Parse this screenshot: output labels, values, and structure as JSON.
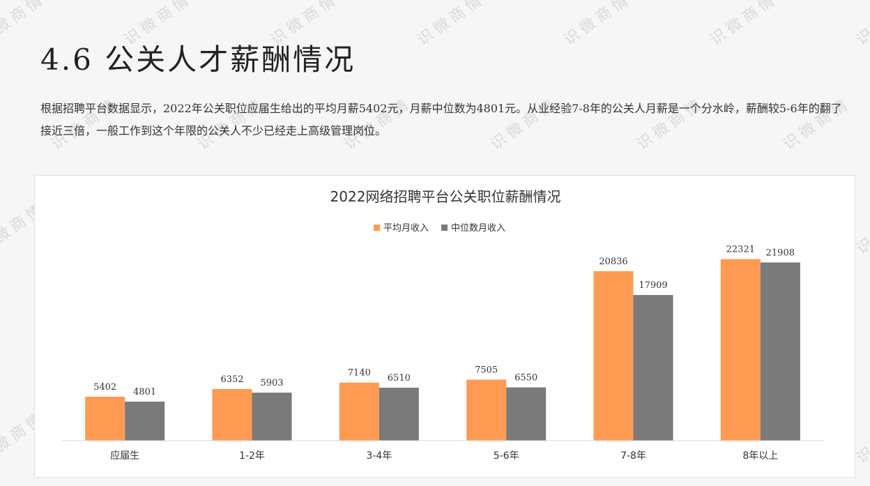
{
  "page": {
    "title": "4.6 公关人才薪酬情况",
    "intro": "根据招聘平台数据显示，2022年公关职位应届生给出的平均月薪5402元，月薪中位数为4801元。从业经验7-8年的公关人月薪是一个分水岭，薪酬较5-6年的翻了接近三倍，一般工作到这个年限的公关人不少已经走上高级管理岗位。",
    "watermark": "识微商情"
  },
  "colors": {
    "avg": "#FF9A52",
    "median": "#7A7A7A",
    "axis": "#D9D9D9"
  },
  "chart_data": {
    "type": "bar",
    "title": "2022网络招聘平台公关职位薪酬情况",
    "categories": [
      "应届生",
      "1-2年",
      "3-4年",
      "5-6年",
      "7-8年",
      "8年以上"
    ],
    "series": [
      {
        "name": "平均月收入",
        "values": [
          5402,
          6352,
          7140,
          7505,
          20836,
          22321
        ]
      },
      {
        "name": "中位数月收入",
        "values": [
          4801,
          5903,
          6510,
          6550,
          17909,
          21908
        ]
      }
    ],
    "legend_position": "top",
    "grid": false,
    "xlabel": "",
    "ylabel": "",
    "ylim": [
      0,
      24000
    ]
  }
}
